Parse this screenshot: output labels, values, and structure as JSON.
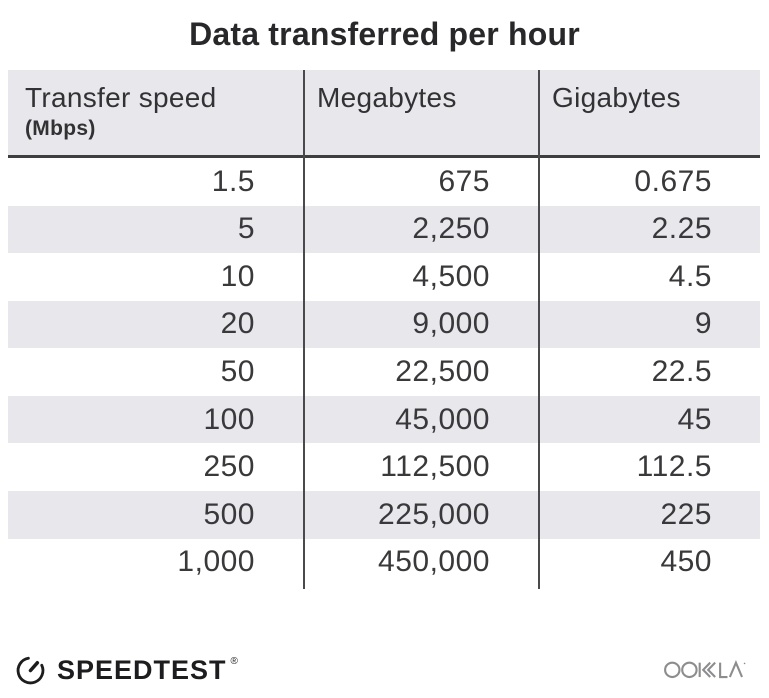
{
  "title": "Data transferred per hour",
  "chart_data": {
    "type": "table",
    "title": "Data transferred per hour",
    "columns": [
      "Transfer speed (Mbps)",
      "Megabytes",
      "Gigabytes"
    ],
    "rows": [
      [
        1.5,
        675,
        0.675
      ],
      [
        5,
        2250,
        2.25
      ],
      [
        10,
        4500,
        4.5
      ],
      [
        20,
        9000,
        9
      ],
      [
        50,
        22500,
        22.5
      ],
      [
        100,
        45000,
        45
      ],
      [
        250,
        112500,
        112.5
      ],
      [
        500,
        225000,
        225
      ],
      [
        1000,
        450000,
        450
      ]
    ]
  },
  "table": {
    "headers": [
      {
        "title": "Transfer speed",
        "subtitle": "(Mbps)"
      },
      {
        "title": "Megabytes",
        "subtitle": ""
      },
      {
        "title": "Gigabytes",
        "subtitle": ""
      }
    ],
    "rows": [
      [
        "1.5",
        "675",
        "0.675"
      ],
      [
        "5",
        "2,250",
        "2.25"
      ],
      [
        "10",
        "4,500",
        "4.5"
      ],
      [
        "20",
        "9,000",
        "9"
      ],
      [
        "50",
        "22,500",
        "22.5"
      ],
      [
        "100",
        "45,000",
        "45"
      ],
      [
        "250",
        "112,500",
        "112.5"
      ],
      [
        "500",
        "225,000",
        "225"
      ],
      [
        "1,000",
        "450,000",
        "450"
      ]
    ]
  },
  "footer": {
    "speedtest_label": "SPEEDTEST",
    "registered_mark": "®",
    "ookla_label": "OOKLA"
  },
  "colors": {
    "stripe": "#e8e7eb",
    "divider": "#4a4a4c",
    "header_rule": "#3e3e40",
    "title_text": "#28282a",
    "header_text": "#323234",
    "number_text": "#39393b",
    "logo_dark": "#1d1d1f",
    "ookla_gray": "#8d8d8f",
    "background": "#ffffff"
  }
}
